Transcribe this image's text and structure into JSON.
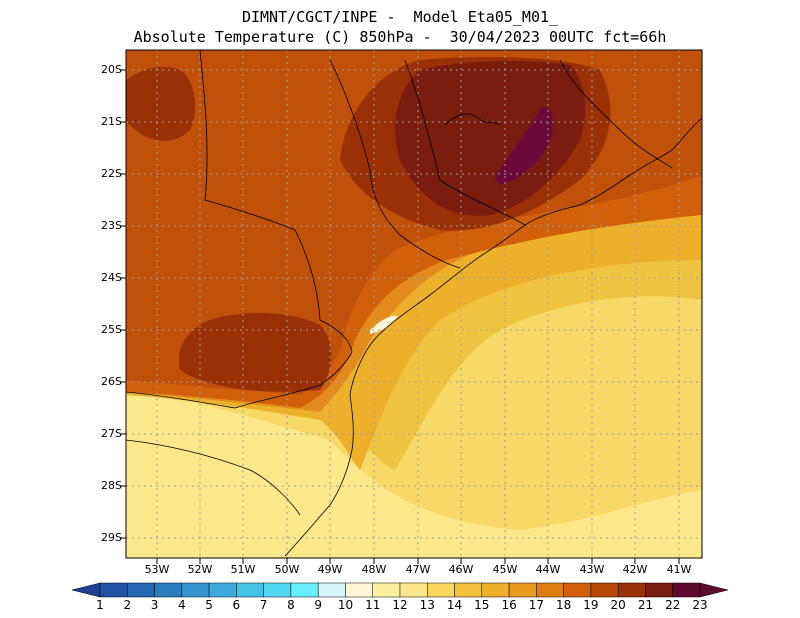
{
  "title": {
    "line1": "DIMNT/CGCT/INPE -  Model Eta05_M01_",
    "line2": "Absolute Temperature (C) 850hPa -  30/04/2023 00UTC fct=66h"
  },
  "axes": {
    "lat_labels": [
      "20S",
      "21S",
      "22S",
      "23S",
      "24S",
      "25S",
      "26S",
      "27S",
      "28S",
      "29S"
    ],
    "lon_labels": [
      "53W",
      "52W",
      "51W",
      "50W",
      "49W",
      "48W",
      "47W",
      "46W",
      "45W",
      "44W",
      "43W",
      "42W",
      "41W"
    ]
  },
  "colorbar": {
    "labels": [
      "1",
      "2",
      "3",
      "4",
      "5",
      "6",
      "7",
      "8",
      "9",
      "10",
      "11",
      "12",
      "13",
      "14",
      "15",
      "16",
      "17",
      "18",
      "19",
      "20",
      "21",
      "22",
      "23"
    ],
    "colors": [
      "#1d3f8f",
      "#1f52a3",
      "#2466b3",
      "#2a7cc1",
      "#3594cf",
      "#3cabdb",
      "#45c3e6",
      "#53d9f2",
      "#66f0fb",
      "#d6f4fb",
      "#fff6d6",
      "#fff0a0",
      "#fde58a",
      "#f9d560",
      "#f1c13c",
      "#edb02a",
      "#e99a1c",
      "#e07d12",
      "#d2600a",
      "#b84808",
      "#9a3006",
      "#7a1c10",
      "#5e0a2e"
    ]
  },
  "map_colors": {
    "ocean_pale": "#fbe88a",
    "ocean_light": "#f7d968",
    "ocean_mid": "#efc440",
    "ocean_gold": "#edb02a",
    "land_orange": "#e38b1e",
    "land_dark_orange": "#d2600a",
    "land_rust": "#c0500a",
    "land_brown": "#9a3006",
    "hot_core": "#7a1c10",
    "hot_max": "#6b0a38",
    "cold_spot": "#fff6d6"
  }
}
